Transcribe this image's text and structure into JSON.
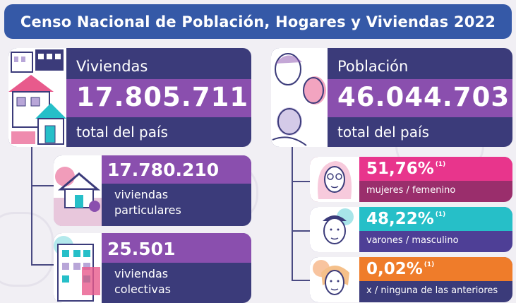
{
  "header": {
    "title": "Censo Nacional de Población, Hogares y Viviendas 2022"
  },
  "viviendas": {
    "label": "Viviendas",
    "value": "17.805.711",
    "sub": "total del país",
    "particulares": {
      "value": "17.780.210",
      "label_line1": "viviendas",
      "label_line2": "particulares"
    },
    "colectivas": {
      "value": "25.501",
      "label_line1": "viviendas",
      "label_line2": "colectivas"
    }
  },
  "poblacion": {
    "label": "Población",
    "value": "46.044.703",
    "sub": "total del país",
    "mujeres": {
      "pct": "51,76%",
      "note": "(1)",
      "label": "mujeres / femenino"
    },
    "varones": {
      "pct": "48,22%",
      "note": "(1)",
      "label": "varones / masculino"
    },
    "otros": {
      "pct": "0,02%",
      "note": "(1)",
      "label": "x / ninguna de las anteriores"
    }
  },
  "colors": {
    "header": "#3559a7",
    "navy": "#3b3b7a",
    "purple": "#8a4fae",
    "light_purple": "#b07cd4",
    "indigo": "#4e3f96",
    "pink": "#e8358c",
    "cyan": "#26bfc8",
    "orange": "#ef7c2a"
  }
}
